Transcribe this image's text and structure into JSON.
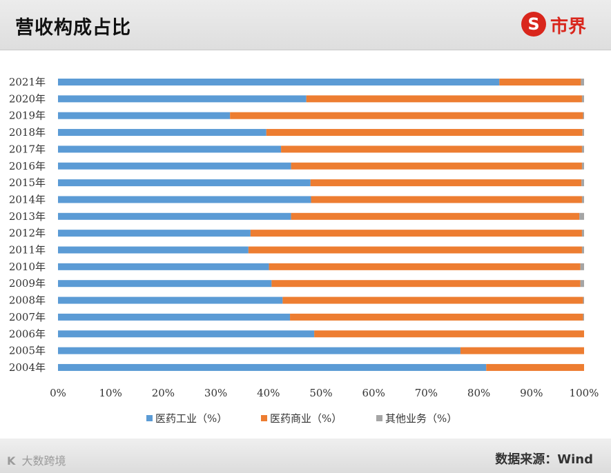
{
  "header": {
    "title": "营收构成占比",
    "brand_icon_glyph": "S",
    "brand_name": "市界"
  },
  "footer": {
    "source": "数据来源：Wind",
    "watermark_glyph": "K",
    "watermark_text": "大数跨境"
  },
  "colors": {
    "industry": "#5b9bd5",
    "commerce": "#ed7d31",
    "other": "#a5a5a5"
  },
  "chart_data": {
    "type": "bar",
    "orientation": "horizontal",
    "stacked": true,
    "title": "营收构成占比",
    "xlim": [
      0,
      100
    ],
    "x_ticks": [
      "0%",
      "10%",
      "20%",
      "30%",
      "40%",
      "50%",
      "60%",
      "70%",
      "80%",
      "90%",
      "100%"
    ],
    "categories": [
      "2021年",
      "2020年",
      "2019年",
      "2018年",
      "2017年",
      "2016年",
      "2015年",
      "2014年",
      "2013年",
      "2012年",
      "2011年",
      "2010年",
      "2009年",
      "2008年",
      "2007年",
      "2006年",
      "2005年",
      "2004年"
    ],
    "series": [
      {
        "name": "医药工业（%）",
        "values": [
          83.9,
          47.2,
          32.7,
          39.6,
          42.4,
          44.3,
          48.0,
          48.1,
          44.3,
          36.6,
          36.2,
          40.1,
          40.6,
          42.7,
          44.1,
          48.7,
          76.5,
          81.4
        ]
      },
      {
        "name": "医药商业（%）",
        "values": [
          15.5,
          52.4,
          67.1,
          60.1,
          57.2,
          55.3,
          51.5,
          51.5,
          54.8,
          63.0,
          63.4,
          59.2,
          58.7,
          57.1,
          55.7,
          51.3,
          23.5,
          18.6
        ]
      },
      {
        "name": "其他业务（%）",
        "values": [
          0.6,
          0.4,
          0.2,
          0.3,
          0.4,
          0.4,
          0.5,
          0.4,
          0.9,
          0.4,
          0.4,
          0.7,
          0.7,
          0.2,
          0.2,
          0.0,
          0.0,
          0.0
        ]
      }
    ],
    "legend_position": "bottom",
    "grid": false
  }
}
